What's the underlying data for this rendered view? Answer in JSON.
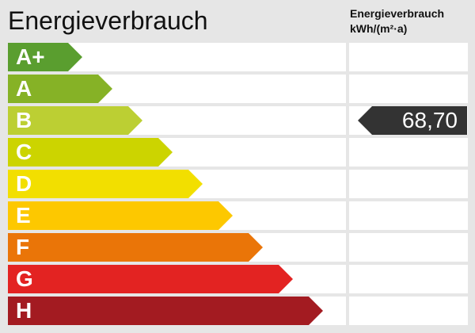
{
  "header": {
    "title": "Energieverbrauch",
    "column_title_line1": "Energieverbrauch",
    "column_title_line2": "kWh/(m²·a)"
  },
  "classes": [
    {
      "label": "A+",
      "color": "#5a9e2f"
    },
    {
      "label": "A",
      "color": "#86b226"
    },
    {
      "label": "B",
      "color": "#bccf33"
    },
    {
      "label": "C",
      "color": "#ccd400"
    },
    {
      "label": "D",
      "color": "#f2df00"
    },
    {
      "label": "E",
      "color": "#fdc800"
    },
    {
      "label": "F",
      "color": "#ea7508"
    },
    {
      "label": "G",
      "color": "#e32322"
    },
    {
      "label": "H",
      "color": "#a31b21"
    }
  ],
  "value": {
    "text": "68,70",
    "class": "B",
    "color": "#333333"
  }
}
